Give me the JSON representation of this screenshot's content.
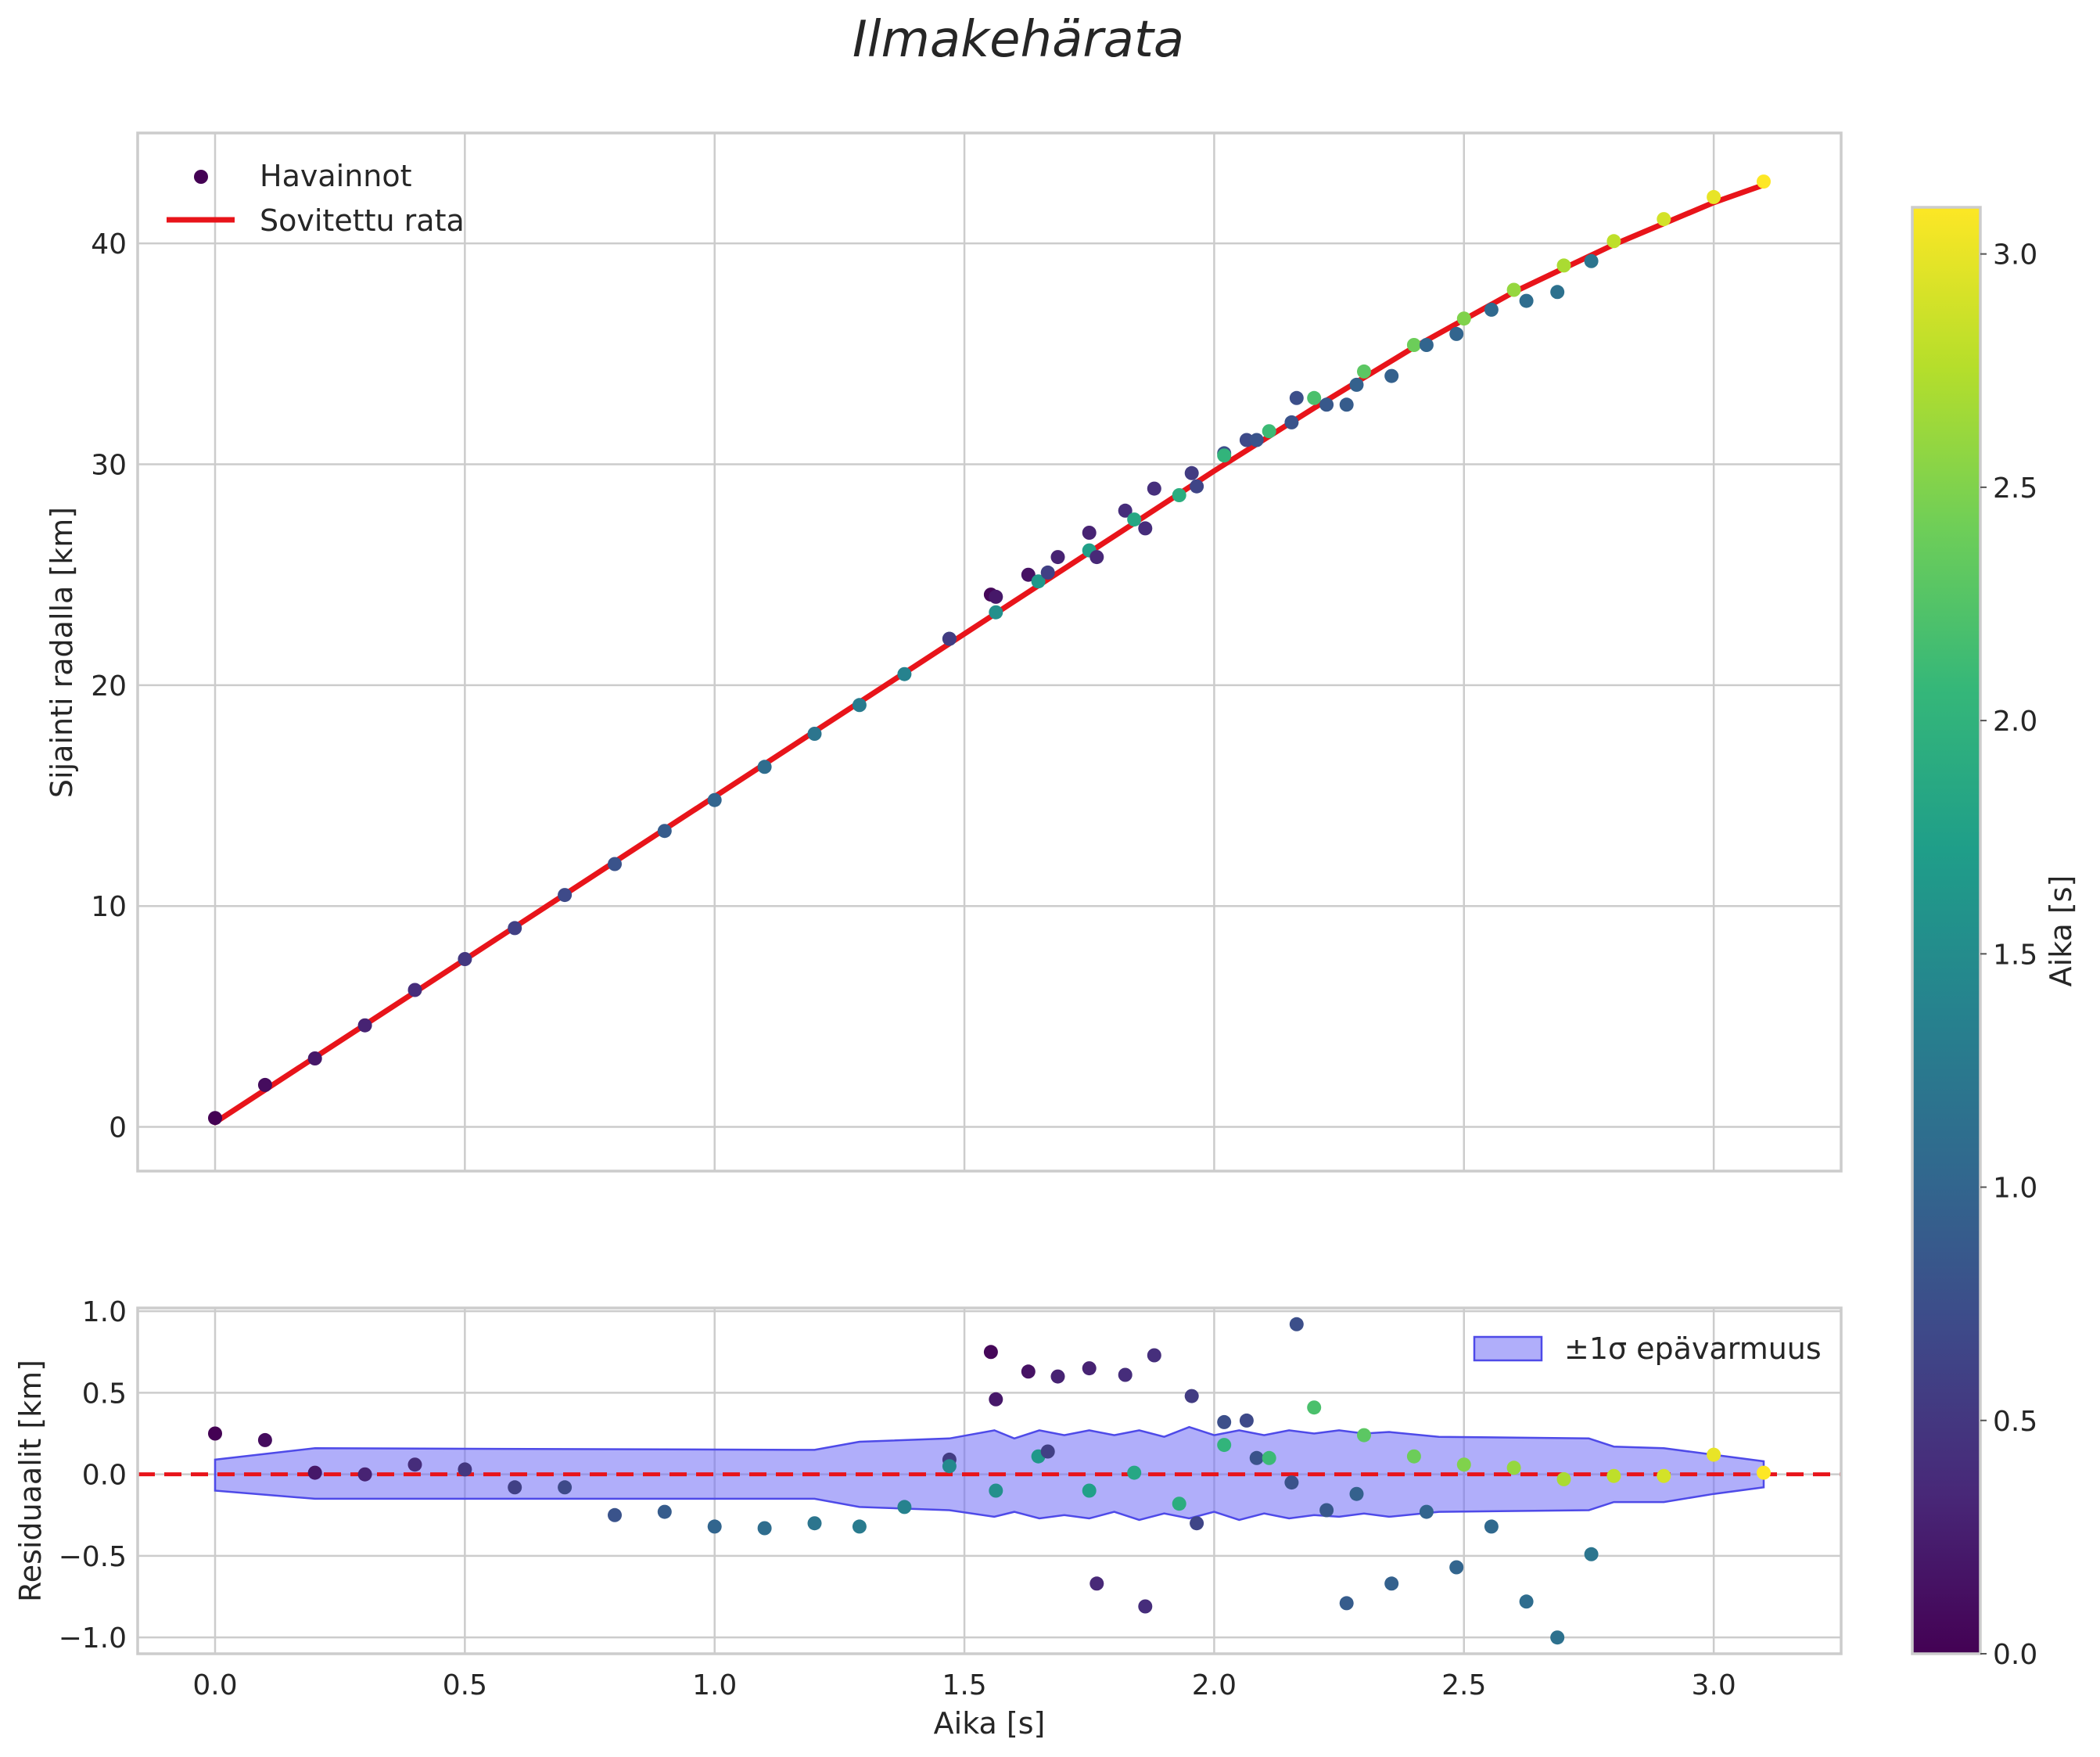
{
  "title": "Ilmakehärata",
  "colors": {
    "fit_line": "#e8141a",
    "zero_line": "#e8141a",
    "band_fill": "#6f6cf5",
    "band_stroke": "#4e4ae8",
    "grid": "#cccccc",
    "viridis": [
      "#440154",
      "#482878",
      "#3e4989",
      "#31688e",
      "#26828e",
      "#1f9e89",
      "#35b779",
      "#6ece58",
      "#b5de2b",
      "#fde725"
    ]
  },
  "chart_data": [
    {
      "name": "main",
      "type": "scatter",
      "xlabel": "",
      "ylabel": "Sijainti radalla [km]",
      "xlim": [
        -0.155,
        3.255
      ],
      "ylim": [
        -2,
        45
      ],
      "xticks": [
        0.0,
        0.5,
        1.0,
        1.5,
        2.0,
        2.5,
        3.0
      ],
      "yticks": [
        0,
        10,
        20,
        30,
        40
      ],
      "ytick_labels": [
        "0",
        "10",
        "20",
        "30",
        "40"
      ],
      "legend": {
        "placement": "top-left",
        "entries": [
          "Havainnot",
          "Sovitettu rata"
        ]
      },
      "series": [
        {
          "name": "Havainnot",
          "kind": "scatter",
          "note": "c = colour value (Aika [s])",
          "points": [
            {
              "x": 0.0,
              "y": 0.4,
              "c": 0.0
            },
            {
              "x": 0.1,
              "y": 1.9,
              "c": 0.1
            },
            {
              "x": 0.2,
              "y": 3.1,
              "c": 0.2
            },
            {
              "x": 0.3,
              "y": 4.6,
              "c": 0.3
            },
            {
              "x": 0.4,
              "y": 6.2,
              "c": 0.4
            },
            {
              "x": 0.5,
              "y": 7.6,
              "c": 0.5
            },
            {
              "x": 0.6,
              "y": 9.0,
              "c": 0.6
            },
            {
              "x": 0.7,
              "y": 10.5,
              "c": 0.7
            },
            {
              "x": 0.8,
              "y": 11.9,
              "c": 0.8
            },
            {
              "x": 0.9,
              "y": 13.4,
              "c": 0.9
            },
            {
              "x": 1.0,
              "y": 14.8,
              "c": 1.0
            },
            {
              "x": 1.1,
              "y": 16.3,
              "c": 1.1
            },
            {
              "x": 1.2,
              "y": 17.8,
              "c": 1.2
            },
            {
              "x": 1.29,
              "y": 19.1,
              "c": 1.29
            },
            {
              "x": 1.38,
              "y": 20.5,
              "c": 1.38
            },
            {
              "x": 1.47,
              "y": 22.1,
              "c": 1.47
            },
            {
              "x": 1.47,
              "y": 22.1,
              "c": 0.55
            },
            {
              "x": 1.553,
              "y": 24.1,
              "c": 0.05
            },
            {
              "x": 1.563,
              "y": 24.0,
              "c": 0.2
            },
            {
              "x": 1.563,
              "y": 23.3,
              "c": 1.55
            },
            {
              "x": 1.628,
              "y": 25.0,
              "c": 0.15
            },
            {
              "x": 1.648,
              "y": 24.7,
              "c": 1.65
            },
            {
              "x": 1.667,
              "y": 25.1,
              "c": 0.6
            },
            {
              "x": 1.687,
              "y": 25.8,
              "c": 0.3
            },
            {
              "x": 1.75,
              "y": 26.9,
              "c": 0.3
            },
            {
              "x": 1.75,
              "y": 26.1,
              "c": 1.75
            },
            {
              "x": 1.765,
              "y": 25.8,
              "c": 0.35
            },
            {
              "x": 1.822,
              "y": 27.9,
              "c": 0.4
            },
            {
              "x": 1.84,
              "y": 27.5,
              "c": 1.84
            },
            {
              "x": 1.862,
              "y": 27.1,
              "c": 0.4
            },
            {
              "x": 1.88,
              "y": 28.9,
              "c": 0.42
            },
            {
              "x": 1.93,
              "y": 28.6,
              "c": 1.93
            },
            {
              "x": 1.955,
              "y": 29.6,
              "c": 0.55
            },
            {
              "x": 1.965,
              "y": 29.0,
              "c": 0.65
            },
            {
              "x": 2.02,
              "y": 30.5,
              "c": 0.75
            },
            {
              "x": 2.02,
              "y": 30.4,
              "c": 2.02
            },
            {
              "x": 2.065,
              "y": 31.1,
              "c": 0.7
            },
            {
              "x": 2.085,
              "y": 31.1,
              "c": 0.8
            },
            {
              "x": 2.11,
              "y": 31.5,
              "c": 2.11
            },
            {
              "x": 2.155,
              "y": 31.9,
              "c": 0.8
            },
            {
              "x": 2.165,
              "y": 33.0,
              "c": 0.75
            },
            {
              "x": 2.2,
              "y": 33.0,
              "c": 2.2
            },
            {
              "x": 2.225,
              "y": 32.7,
              "c": 0.85
            },
            {
              "x": 2.265,
              "y": 32.7,
              "c": 0.9
            },
            {
              "x": 2.285,
              "y": 33.6,
              "c": 0.95
            },
            {
              "x": 2.3,
              "y": 34.2,
              "c": 2.3
            },
            {
              "x": 2.355,
              "y": 34.0,
              "c": 0.95
            },
            {
              "x": 2.4,
              "y": 35.4,
              "c": 2.4
            },
            {
              "x": 2.425,
              "y": 35.4,
              "c": 1.0
            },
            {
              "x": 2.485,
              "y": 35.9,
              "c": 1.0
            },
            {
              "x": 2.5,
              "y": 36.6,
              "c": 2.5
            },
            {
              "x": 2.555,
              "y": 37.0,
              "c": 1.05
            },
            {
              "x": 2.6,
              "y": 37.9,
              "c": 2.6
            },
            {
              "x": 2.625,
              "y": 37.4,
              "c": 1.1
            },
            {
              "x": 2.687,
              "y": 37.8,
              "c": 1.15
            },
            {
              "x": 2.7,
              "y": 39.0,
              "c": 2.7
            },
            {
              "x": 2.755,
              "y": 39.2,
              "c": 1.2
            },
            {
              "x": 2.8,
              "y": 40.1,
              "c": 2.8
            },
            {
              "x": 2.9,
              "y": 41.1,
              "c": 2.9
            },
            {
              "x": 3.0,
              "y": 42.1,
              "c": 3.0
            },
            {
              "x": 3.1,
              "y": 42.8,
              "c": 3.1
            }
          ]
        },
        {
          "name": "Sovitettu rata",
          "kind": "line",
          "points": [
            {
              "x": 0.0,
              "y": 0.2
            },
            {
              "x": 0.2,
              "y": 3.15
            },
            {
              "x": 0.4,
              "y": 6.1
            },
            {
              "x": 0.6,
              "y": 9.05
            },
            {
              "x": 0.8,
              "y": 12.0
            },
            {
              "x": 1.0,
              "y": 14.95
            },
            {
              "x": 1.2,
              "y": 17.9
            },
            {
              "x": 1.4,
              "y": 20.85
            },
            {
              "x": 1.6,
              "y": 23.8
            },
            {
              "x": 1.8,
              "y": 26.75
            },
            {
              "x": 2.0,
              "y": 29.7
            },
            {
              "x": 2.2,
              "y": 32.55
            },
            {
              "x": 2.4,
              "y": 35.3
            },
            {
              "x": 2.6,
              "y": 37.8
            },
            {
              "x": 2.8,
              "y": 39.95
            },
            {
              "x": 3.0,
              "y": 41.85
            },
            {
              "x": 3.1,
              "y": 42.65
            }
          ]
        }
      ]
    },
    {
      "name": "residuals",
      "type": "scatter",
      "xlabel": "Aika [s]",
      "ylabel": "Residuaalit [km]",
      "xlim": [
        -0.155,
        3.255
      ],
      "ylim": [
        -1.1,
        1.02
      ],
      "xticks": [
        0.0,
        0.5,
        1.0,
        1.5,
        2.0,
        2.5,
        3.0
      ],
      "xtick_labels": [
        "0.0",
        "0.5",
        "1.0",
        "1.5",
        "2.0",
        "2.5",
        "3.0"
      ],
      "yticks": [
        -1.0,
        -0.5,
        0.0,
        0.5,
        1.0
      ],
      "ytick_labels": [
        "−1.0",
        "−0.5",
        "0.0",
        "0.5",
        "1.0"
      ],
      "legend": {
        "placement": "top-right",
        "entries": [
          "±1σ epävarmuus"
        ]
      },
      "reference_line": {
        "y": 0.0,
        "style": "dashed"
      },
      "band": {
        "name": "±1σ epävarmuus",
        "points": [
          {
            "x": 0.0,
            "lo": -0.1,
            "hi": 0.09
          },
          {
            "x": 0.2,
            "lo": -0.15,
            "hi": 0.16
          },
          {
            "x": 1.2,
            "lo": -0.15,
            "hi": 0.15
          },
          {
            "x": 1.29,
            "lo": -0.2,
            "hi": 0.2
          },
          {
            "x": 1.47,
            "lo": -0.22,
            "hi": 0.22
          },
          {
            "x": 1.56,
            "lo": -0.26,
            "hi": 0.27
          },
          {
            "x": 1.6,
            "lo": -0.23,
            "hi": 0.22
          },
          {
            "x": 1.65,
            "lo": -0.27,
            "hi": 0.27
          },
          {
            "x": 1.7,
            "lo": -0.25,
            "hi": 0.24
          },
          {
            "x": 1.75,
            "lo": -0.27,
            "hi": 0.27
          },
          {
            "x": 1.8,
            "lo": -0.23,
            "hi": 0.24
          },
          {
            "x": 1.85,
            "lo": -0.28,
            "hi": 0.27
          },
          {
            "x": 1.9,
            "lo": -0.24,
            "hi": 0.23
          },
          {
            "x": 1.95,
            "lo": -0.27,
            "hi": 0.29
          },
          {
            "x": 2.0,
            "lo": -0.23,
            "hi": 0.24
          },
          {
            "x": 2.05,
            "lo": -0.28,
            "hi": 0.27
          },
          {
            "x": 2.1,
            "lo": -0.24,
            "hi": 0.24
          },
          {
            "x": 2.15,
            "lo": -0.27,
            "hi": 0.27
          },
          {
            "x": 2.2,
            "lo": -0.25,
            "hi": 0.25
          },
          {
            "x": 2.25,
            "lo": -0.26,
            "hi": 0.27
          },
          {
            "x": 2.3,
            "lo": -0.24,
            "hi": 0.25
          },
          {
            "x": 2.35,
            "lo": -0.26,
            "hi": 0.26
          },
          {
            "x": 2.45,
            "lo": -0.23,
            "hi": 0.23
          },
          {
            "x": 2.75,
            "lo": -0.22,
            "hi": 0.22
          },
          {
            "x": 2.8,
            "lo": -0.17,
            "hi": 0.17
          },
          {
            "x": 2.9,
            "lo": -0.17,
            "hi": 0.16
          },
          {
            "x": 3.0,
            "lo": -0.12,
            "hi": 0.12
          },
          {
            "x": 3.1,
            "lo": -0.08,
            "hi": 0.08
          }
        ]
      },
      "series": [
        {
          "name": "Residuaalit",
          "kind": "scatter",
          "points": [
            {
              "x": 0.0,
              "y": 0.25,
              "c": 0.0
            },
            {
              "x": 0.1,
              "y": 0.21,
              "c": 0.1
            },
            {
              "x": 0.2,
              "y": 0.01,
              "c": 0.2
            },
            {
              "x": 0.3,
              "y": 0.0,
              "c": 0.3
            },
            {
              "x": 0.4,
              "y": 0.06,
              "c": 0.4
            },
            {
              "x": 0.5,
              "y": 0.03,
              "c": 0.5
            },
            {
              "x": 0.6,
              "y": -0.08,
              "c": 0.6
            },
            {
              "x": 0.7,
              "y": -0.08,
              "c": 0.7
            },
            {
              "x": 0.8,
              "y": -0.25,
              "c": 0.8
            },
            {
              "x": 0.9,
              "y": -0.23,
              "c": 0.9
            },
            {
              "x": 1.0,
              "y": -0.32,
              "c": 1.0
            },
            {
              "x": 1.1,
              "y": -0.33,
              "c": 1.1
            },
            {
              "x": 1.2,
              "y": -0.3,
              "c": 1.2
            },
            {
              "x": 1.29,
              "y": -0.32,
              "c": 1.29
            },
            {
              "x": 1.38,
              "y": -0.2,
              "c": 1.38
            },
            {
              "x": 1.47,
              "y": 0.09,
              "c": 0.55
            },
            {
              "x": 1.47,
              "y": 0.05,
              "c": 1.47
            },
            {
              "x": 1.553,
              "y": 0.75,
              "c": 0.05
            },
            {
              "x": 1.563,
              "y": 0.46,
              "c": 0.2
            },
            {
              "x": 1.563,
              "y": -0.1,
              "c": 1.55
            },
            {
              "x": 1.628,
              "y": 0.63,
              "c": 0.15
            },
            {
              "x": 1.648,
              "y": 0.11,
              "c": 1.65
            },
            {
              "x": 1.667,
              "y": 0.14,
              "c": 0.6
            },
            {
              "x": 1.687,
              "y": 0.6,
              "c": 0.3
            },
            {
              "x": 1.75,
              "y": 0.65,
              "c": 0.3
            },
            {
              "x": 1.75,
              "y": -0.1,
              "c": 1.75
            },
            {
              "x": 1.765,
              "y": -0.67,
              "c": 0.35
            },
            {
              "x": 1.822,
              "y": 0.61,
              "c": 0.4
            },
            {
              "x": 1.84,
              "y": 0.01,
              "c": 1.84
            },
            {
              "x": 1.862,
              "y": -0.81,
              "c": 0.4
            },
            {
              "x": 1.88,
              "y": 0.73,
              "c": 0.42
            },
            {
              "x": 1.93,
              "y": -0.18,
              "c": 1.93
            },
            {
              "x": 1.955,
              "y": 0.48,
              "c": 0.55
            },
            {
              "x": 1.965,
              "y": -0.3,
              "c": 0.65
            },
            {
              "x": 2.02,
              "y": 0.32,
              "c": 0.75
            },
            {
              "x": 2.02,
              "y": 0.18,
              "c": 2.02
            },
            {
              "x": 2.065,
              "y": 0.33,
              "c": 0.7
            },
            {
              "x": 2.085,
              "y": 0.1,
              "c": 0.8
            },
            {
              "x": 2.11,
              "y": 0.1,
              "c": 2.11
            },
            {
              "x": 2.155,
              "y": -0.05,
              "c": 0.8
            },
            {
              "x": 2.165,
              "y": 0.92,
              "c": 0.75
            },
            {
              "x": 2.2,
              "y": 0.41,
              "c": 2.2
            },
            {
              "x": 2.225,
              "y": -0.22,
              "c": 0.85
            },
            {
              "x": 2.265,
              "y": -0.79,
              "c": 0.9
            },
            {
              "x": 2.285,
              "y": -0.12,
              "c": 0.95
            },
            {
              "x": 2.3,
              "y": 0.24,
              "c": 2.3
            },
            {
              "x": 2.355,
              "y": -0.67,
              "c": 0.95
            },
            {
              "x": 2.4,
              "y": 0.11,
              "c": 2.4
            },
            {
              "x": 2.425,
              "y": -0.23,
              "c": 1.0
            },
            {
              "x": 2.485,
              "y": -0.57,
              "c": 1.0
            },
            {
              "x": 2.5,
              "y": 0.06,
              "c": 2.5
            },
            {
              "x": 2.555,
              "y": -0.32,
              "c": 1.05
            },
            {
              "x": 2.6,
              "y": 0.04,
              "c": 2.6
            },
            {
              "x": 2.625,
              "y": -0.78,
              "c": 1.1
            },
            {
              "x": 2.687,
              "y": -1.0,
              "c": 1.15
            },
            {
              "x": 2.7,
              "y": -0.03,
              "c": 2.7
            },
            {
              "x": 2.755,
              "y": -0.49,
              "c": 1.2
            },
            {
              "x": 2.8,
              "y": -0.01,
              "c": 2.8
            },
            {
              "x": 2.9,
              "y": -0.01,
              "c": 2.9
            },
            {
              "x": 3.0,
              "y": 0.12,
              "c": 3.0
            },
            {
              "x": 3.1,
              "y": 0.01,
              "c": 3.1
            }
          ]
        }
      ]
    },
    {
      "name": "colorbar",
      "type": "heatmap",
      "label": "Aika [s]",
      "range": [
        0.0,
        3.1
      ],
      "ticks": [
        0.0,
        0.5,
        1.0,
        1.5,
        2.0,
        2.5,
        3.0
      ],
      "tick_labels": [
        "0.0",
        "0.5",
        "1.0",
        "1.5",
        "2.0",
        "2.5",
        "3.0"
      ]
    }
  ]
}
